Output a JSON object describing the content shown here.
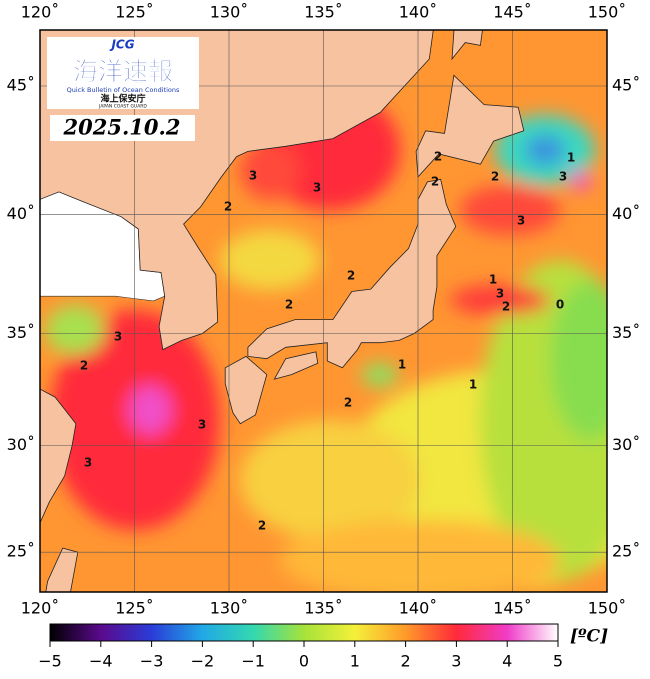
{
  "map": {
    "logo": {
      "badge": "JCG",
      "title": "海洋速報",
      "subtitle": "Quick Bulletin of Ocean Conditions",
      "agency": "海上保安庁",
      "agency_en": "JAPAN COAST GUARD"
    },
    "date": "2025.10.2",
    "lon_ticks": [
      {
        "value": 120,
        "label": "120˚"
      },
      {
        "value": 125,
        "label": "125˚"
      },
      {
        "value": 130,
        "label": "130˚"
      },
      {
        "value": 135,
        "label": "135˚"
      },
      {
        "value": 140,
        "label": "140˚"
      },
      {
        "value": 145,
        "label": "145˚"
      },
      {
        "value": 150,
        "label": "150˚"
      }
    ],
    "lat_ticks": [
      {
        "value": 45,
        "label": "45˚"
      },
      {
        "value": 40,
        "label": "40˚"
      },
      {
        "value": 35,
        "label": "35˚"
      },
      {
        "value": 30,
        "label": "30˚"
      },
      {
        "value": 25,
        "label": "25˚"
      }
    ],
    "contour_labels": [
      "2",
      "3",
      "3",
      "2",
      "2",
      "3",
      "2",
      "3",
      "3",
      "2",
      "1",
      "2",
      "1",
      "2",
      "2",
      "2",
      "3",
      "1",
      "3",
      "1",
      "3",
      "2",
      "0"
    ],
    "colorbar": {
      "ticks": [
        {
          "value": -5,
          "label": "−5"
        },
        {
          "value": -4,
          "label": "−4"
        },
        {
          "value": -3,
          "label": "−3"
        },
        {
          "value": -2,
          "label": "−2"
        },
        {
          "value": -1,
          "label": "−1"
        },
        0,
        1,
        2,
        3,
        4,
        5
      ],
      "unit": "[ºC]"
    }
  }
}
